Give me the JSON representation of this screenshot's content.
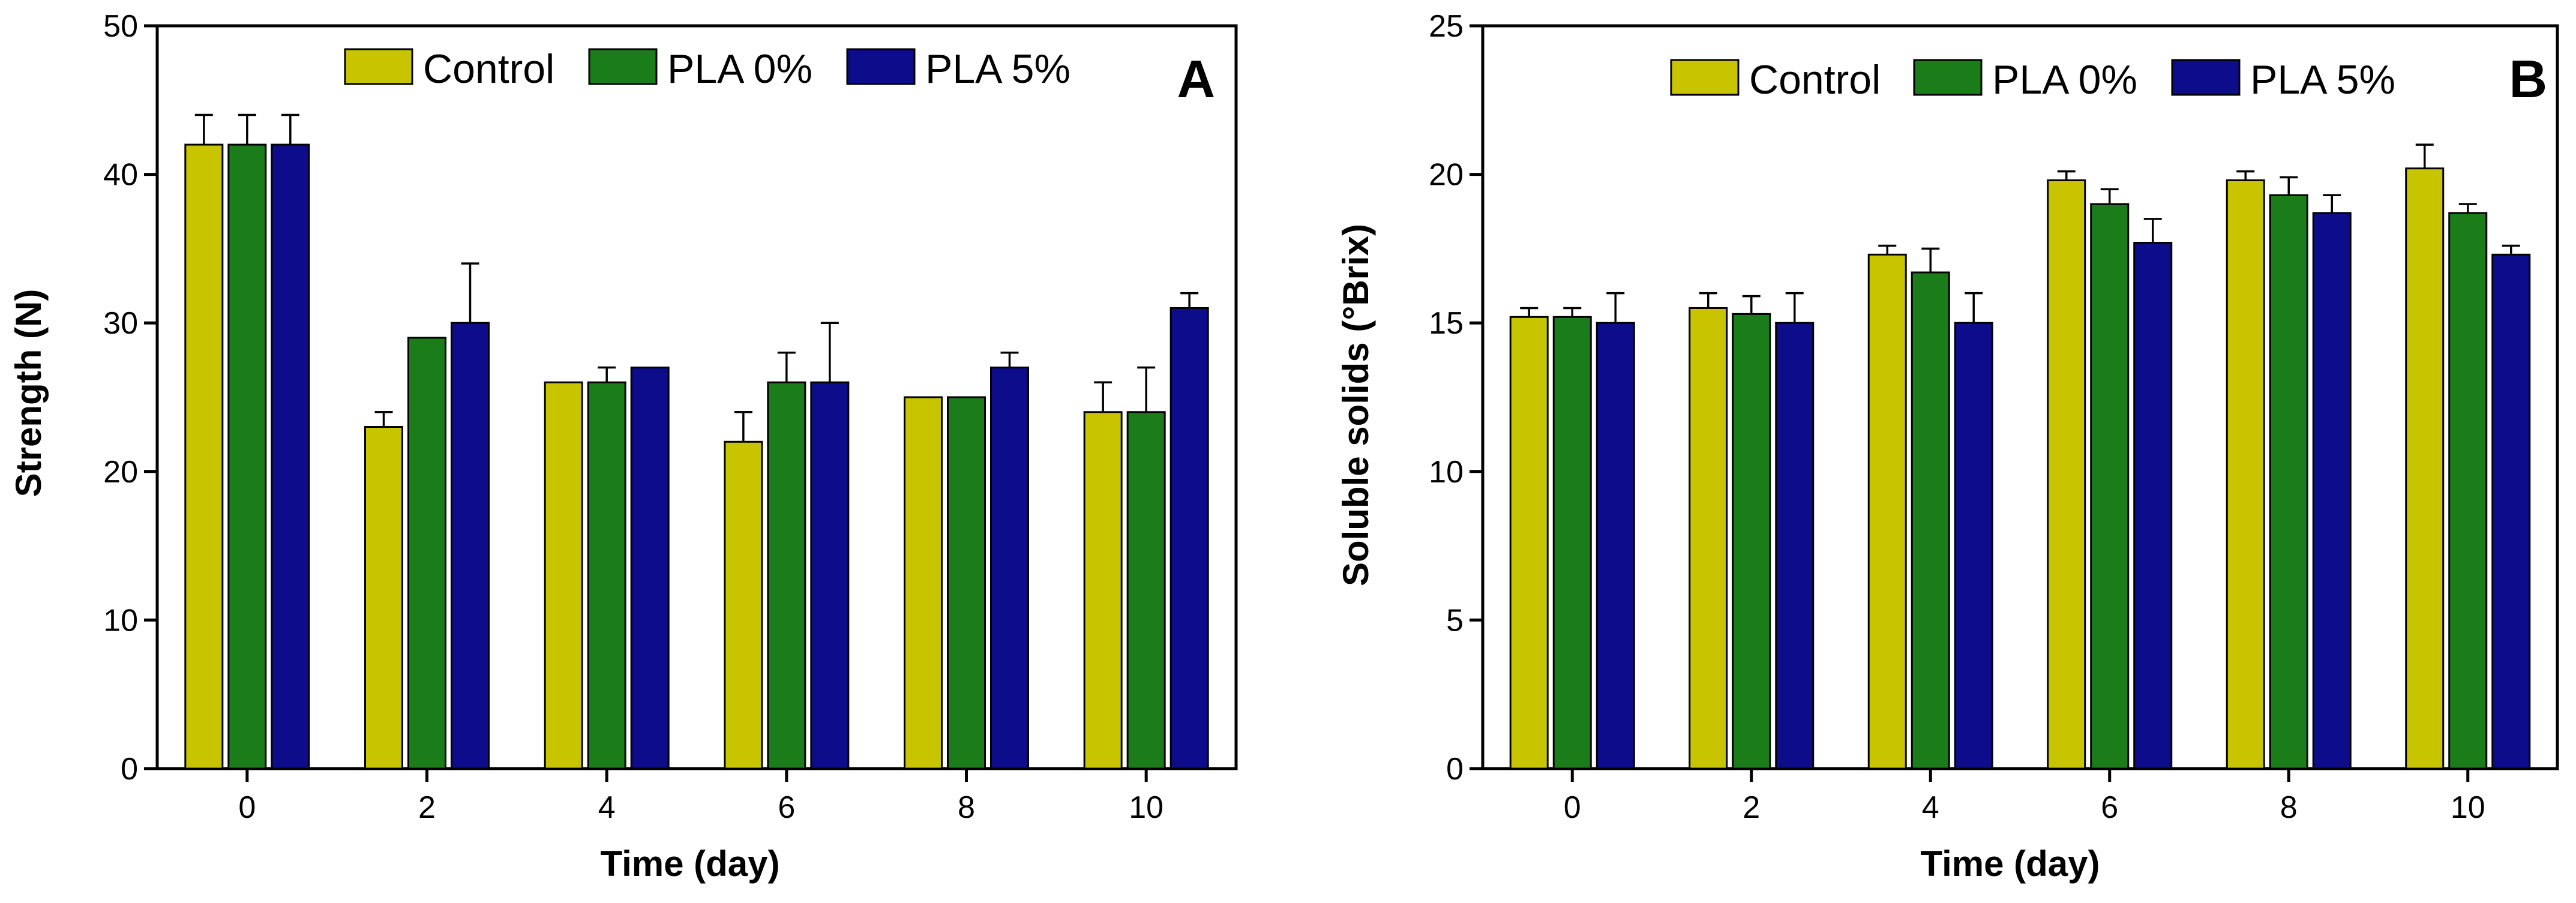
{
  "colors": {
    "control": "#c8c400",
    "pla0": "#1a7d1a",
    "pla5": "#0d0d8c"
  },
  "legend": {
    "control": "Control",
    "pla0": "PLA 0%",
    "pla5": "PLA 5%"
  },
  "chart_data": [
    {
      "type": "bar",
      "panel": "A",
      "title": "",
      "xlabel": "Time (day)",
      "ylabel": "Strength (N)",
      "categories": [
        "0",
        "2",
        "4",
        "6",
        "8",
        "10"
      ],
      "ylim": [
        0,
        50
      ],
      "yticks": [
        "0",
        "10",
        "20",
        "30",
        "40",
        "50"
      ],
      "legend_position": "top",
      "series": [
        {
          "name": "Control",
          "key": "control",
          "values": [
            42,
            23,
            26,
            22,
            25,
            24
          ],
          "errors": [
            2,
            1,
            0,
            2,
            0,
            2
          ]
        },
        {
          "name": "PLA 0%",
          "key": "pla0",
          "values": [
            42,
            29,
            26,
            26,
            25,
            24
          ],
          "errors": [
            2,
            0,
            1,
            2,
            0,
            3
          ]
        },
        {
          "name": "PLA 5%",
          "key": "pla5",
          "values": [
            42,
            30,
            27,
            26,
            27,
            31
          ],
          "errors": [
            2,
            4,
            0,
            4,
            1,
            1
          ]
        }
      ]
    },
    {
      "type": "bar",
      "panel": "B",
      "title": "",
      "xlabel": "Time (day)",
      "ylabel": "Soluble solids (°Brix)",
      "categories": [
        "0",
        "2",
        "4",
        "6",
        "8",
        "10"
      ],
      "ylim": [
        0,
        25
      ],
      "yticks": [
        "0",
        "5",
        "10",
        "15",
        "20",
        "25"
      ],
      "legend_position": "top",
      "series": [
        {
          "name": "Control",
          "key": "control",
          "values": [
            15.2,
            15.5,
            17.3,
            19.8,
            19.8,
            20.2
          ],
          "errors": [
            0.3,
            0.5,
            0.3,
            0.3,
            0.3,
            0.8
          ]
        },
        {
          "name": "PLA 0%",
          "key": "pla0",
          "values": [
            15.2,
            15.3,
            16.7,
            19.0,
            19.3,
            18.7
          ],
          "errors": [
            0.3,
            0.6,
            0.8,
            0.5,
            0.6,
            0.3
          ]
        },
        {
          "name": "PLA 5%",
          "key": "pla5",
          "values": [
            15.0,
            15.0,
            15.0,
            17.7,
            18.7,
            17.3
          ],
          "errors": [
            1.0,
            1.0,
            1.0,
            0.8,
            0.6,
            0.3
          ]
        }
      ]
    }
  ]
}
